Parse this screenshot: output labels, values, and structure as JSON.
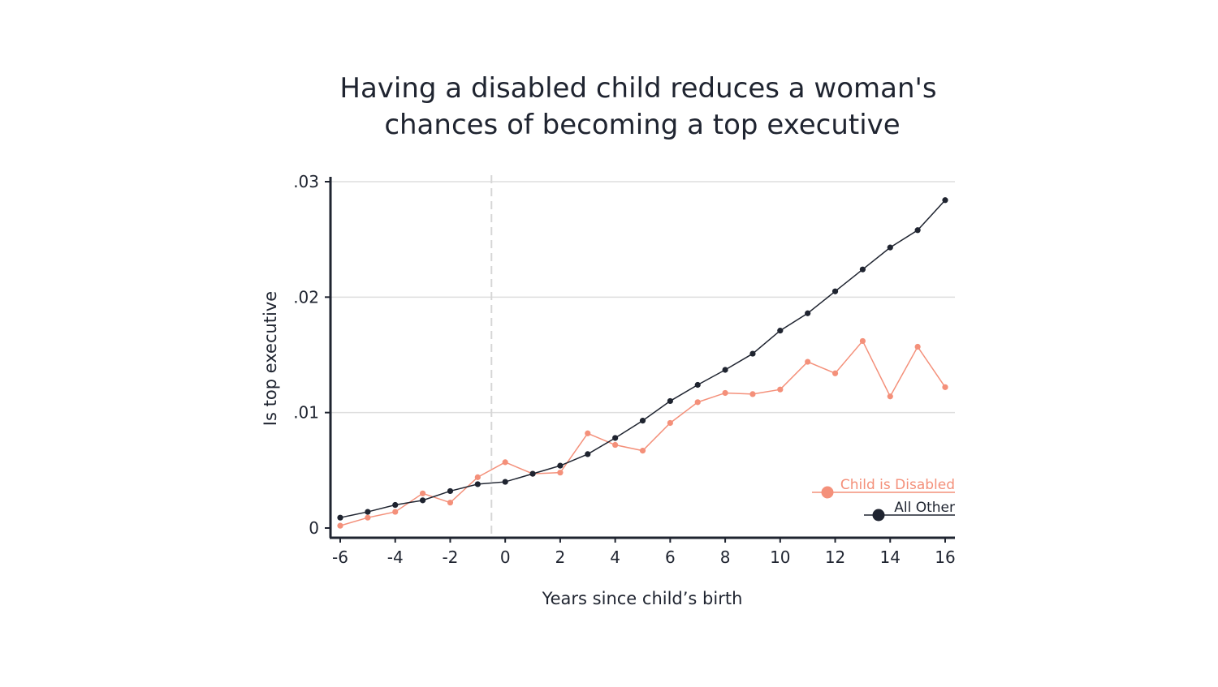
{
  "chart_data": {
    "type": "line",
    "title": [
      "Having a disabled child reduces a woman's",
      "chances of becoming a top executive"
    ],
    "xlabel": "Years since child’s birth",
    "ylabel": "Is top executive",
    "x": [
      -6,
      -5,
      -4,
      -3,
      -2,
      -1,
      0,
      1,
      2,
      3,
      4,
      5,
      6,
      7,
      8,
      9,
      10,
      11,
      12,
      13,
      14,
      15,
      16
    ],
    "xlim": [
      -6,
      16
    ],
    "ylim": [
      0,
      0.03
    ],
    "x_ticks": [
      {
        "value": -6,
        "label": "-6"
      },
      {
        "value": -4,
        "label": "-4"
      },
      {
        "value": -2,
        "label": "-2"
      },
      {
        "value": 0,
        "label": "0"
      },
      {
        "value": 2,
        "label": "2"
      },
      {
        "value": 4,
        "label": "4"
      },
      {
        "value": 6,
        "label": "6"
      },
      {
        "value": 8,
        "label": "8"
      },
      {
        "value": 10,
        "label": "10"
      },
      {
        "value": 12,
        "label": "12"
      },
      {
        "value": 14,
        "label": "14"
      },
      {
        "value": 16,
        "label": "16"
      }
    ],
    "y_ticks": [
      {
        "value": 0,
        "label": "0"
      },
      {
        "value": 0.01,
        "label": ".01"
      },
      {
        "value": 0.02,
        "label": ".02"
      },
      {
        "value": 0.03,
        "label": ".03"
      }
    ],
    "grid": "horizontal",
    "reference_line_x": -0.5,
    "legend_position": "bottom-right",
    "series": [
      {
        "name": "Child is Disabled",
        "color": "#f4907a",
        "values": [
          0.0002,
          0.0009,
          0.0014,
          0.003,
          0.0022,
          0.0044,
          0.0057,
          0.0047,
          0.0048,
          0.0082,
          0.0072,
          0.0067,
          0.0091,
          0.0109,
          0.0117,
          0.0116,
          0.012,
          0.0144,
          0.0134,
          0.0162,
          0.0114,
          0.0157,
          0.0122
        ]
      },
      {
        "name": "All Other",
        "color": "#1f2430",
        "values": [
          0.0009,
          0.0014,
          0.002,
          0.0024,
          0.0032,
          0.0038,
          0.004,
          0.0047,
          0.0054,
          0.0064,
          0.0078,
          0.0093,
          0.011,
          0.0124,
          0.0137,
          0.0151,
          0.0171,
          0.0186,
          0.0205,
          0.0224,
          0.0243,
          0.0258,
          0.0284
        ]
      }
    ]
  }
}
